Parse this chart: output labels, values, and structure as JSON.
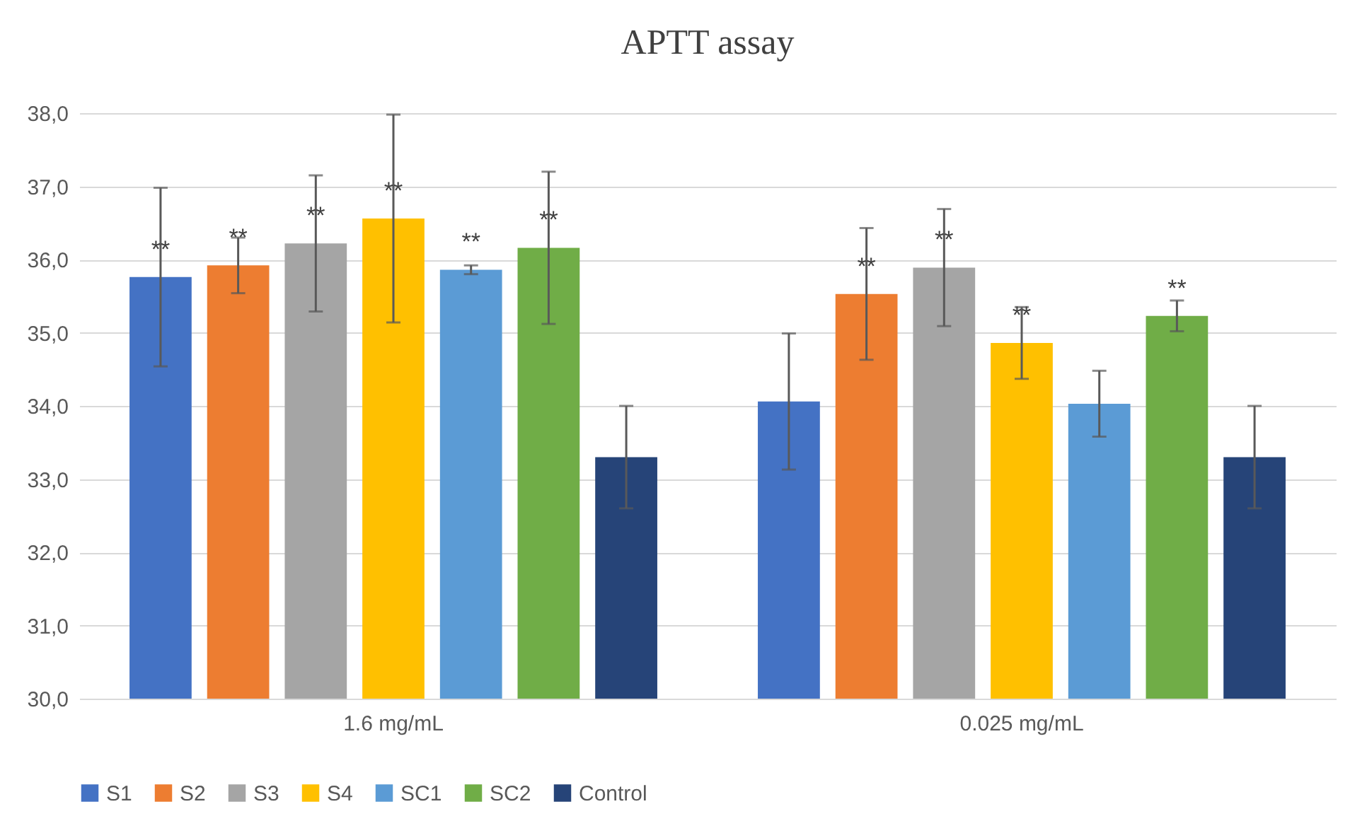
{
  "chart_data": {
    "type": "bar",
    "title": "APTT assay",
    "categories": [
      "1.6 mg/mL",
      "0.025 mg/mL"
    ],
    "series": [
      {
        "name": "S1",
        "color": "#4472c4",
        "values": [
          35.76,
          34.06
        ],
        "errors": [
          1.22,
          0.93
        ],
        "value_labels": [
          "**",
          null
        ]
      },
      {
        "name": "S2",
        "color": "#ed7d31",
        "values": [
          35.92,
          35.53
        ],
        "errors": [
          0.38,
          0.9
        ],
        "value_labels": [
          "**",
          "**"
        ]
      },
      {
        "name": "S3",
        "color": "#a5a5a5",
        "values": [
          36.22,
          35.89
        ],
        "errors": [
          0.93,
          0.8
        ],
        "value_labels": [
          "**",
          "**"
        ]
      },
      {
        "name": "S4",
        "color": "#ffc000",
        "values": [
          36.56,
          34.86
        ],
        "errors": [
          1.42,
          0.49
        ],
        "value_labels": [
          "**",
          "**"
        ]
      },
      {
        "name": "SC1",
        "color": "#5b9bd5",
        "values": [
          35.86,
          34.03
        ],
        "errors": [
          0.06,
          0.45
        ],
        "value_labels": [
          "**",
          null
        ]
      },
      {
        "name": "SC2",
        "color": "#70ad47",
        "values": [
          36.16,
          35.23
        ],
        "errors": [
          1.04,
          0.21
        ],
        "value_labels": [
          "**",
          "**"
        ]
      },
      {
        "name": "Control",
        "color": "#264478",
        "values": [
          33.3,
          33.3
        ],
        "errors": [
          0.7,
          0.7
        ],
        "value_labels": [
          null,
          null
        ]
      }
    ],
    "ylim": [
      30,
      38
    ],
    "yticks": [
      {
        "value": 30,
        "label": "30,0"
      },
      {
        "value": 31,
        "label": "31,0"
      },
      {
        "value": 32,
        "label": "32,0"
      },
      {
        "value": 33,
        "label": "33,0"
      },
      {
        "value": 34,
        "label": "34,0"
      },
      {
        "value": 35,
        "label": "35,0"
      },
      {
        "value": 36,
        "label": "36,0"
      },
      {
        "value": 37,
        "label": "37,0"
      },
      {
        "value": 38,
        "label": "38,0"
      }
    ],
    "grid": "y",
    "legend": "bottom"
  }
}
